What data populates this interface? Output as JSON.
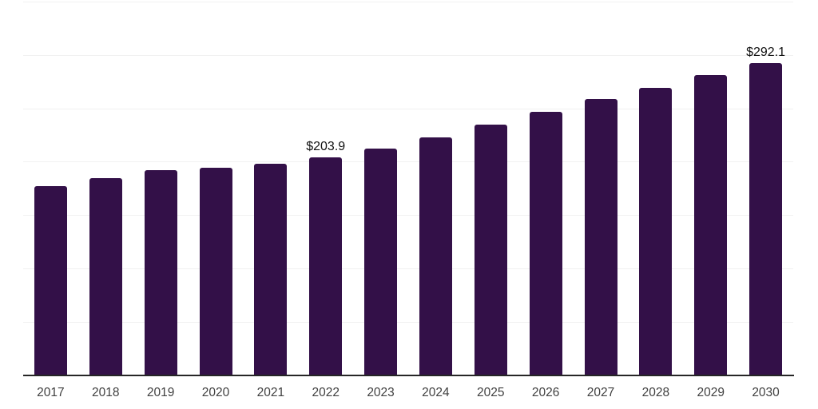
{
  "chart_data": {
    "type": "bar",
    "title": "",
    "xlabel": "",
    "ylabel": "",
    "categories": [
      "2017",
      "2018",
      "2019",
      "2020",
      "2021",
      "2022",
      "2023",
      "2024",
      "2025",
      "2026",
      "2027",
      "2028",
      "2029",
      "2030"
    ],
    "values": [
      177.3,
      184.6,
      191.9,
      194.1,
      198.1,
      203.9,
      212.3,
      222.8,
      234.7,
      246.7,
      258.7,
      269.4,
      281.1,
      292.1
    ],
    "data_labels": {
      "2022": "$203.9",
      "2030": "$292.1"
    },
    "ylim": [
      0,
      350
    ],
    "grid_step": 50,
    "grid": "horizontal",
    "legend_position": "none",
    "colors": {
      "bar": "#331048",
      "grid": "#f1f1f1",
      "axis": "#262626",
      "tick_label": "#404040",
      "data_label": "#111111",
      "background": "#ffffff"
    }
  }
}
